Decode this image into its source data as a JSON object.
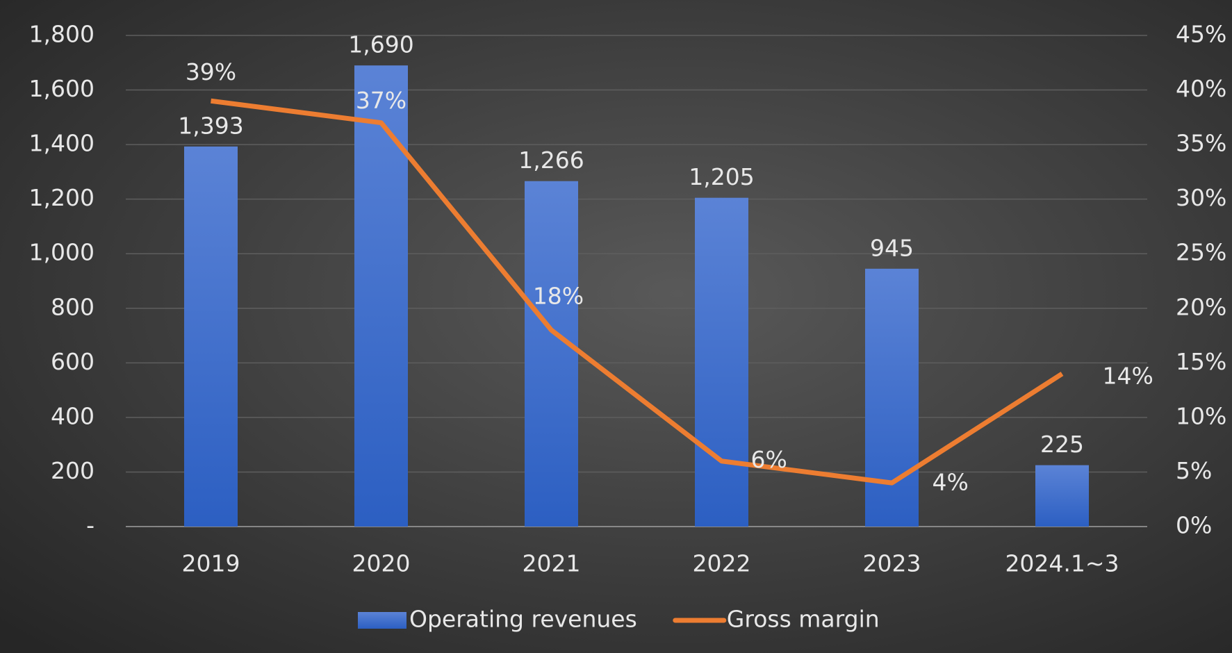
{
  "chart_data": {
    "type": "bar",
    "categories": [
      "2019",
      "2020",
      "2021",
      "2022",
      "2023",
      "2024.1~3"
    ],
    "series": [
      {
        "name": "Operating revenues",
        "type": "bar",
        "color": "#4a78d4",
        "values": [
          1393,
          1690,
          1266,
          1205,
          945,
          225
        ],
        "value_labels": [
          "1,393",
          "1,690",
          "1,266",
          "1,205",
          "945",
          "225"
        ]
      },
      {
        "name": "Gross margin",
        "type": "line",
        "axis": "y2",
        "color": "#ed7d31",
        "values": [
          39,
          37,
          18,
          6,
          4,
          14
        ],
        "value_labels": [
          "39%",
          "37%",
          "18%",
          "6%",
          "4%",
          "14%"
        ]
      }
    ],
    "ylim": [
      0,
      1800
    ],
    "yticks": [
      {
        "value": 0,
        "label": "-"
      },
      200,
      400,
      600,
      800,
      {
        "value": 1000,
        "label": "1,000"
      },
      {
        "value": 1200,
        "label": "1,200"
      },
      {
        "value": 1400,
        "label": "1,400"
      },
      {
        "value": 1600,
        "label": "1,600"
      },
      {
        "value": 1800,
        "label": "1,800"
      }
    ],
    "y2lim": [
      0,
      45
    ],
    "y2ticks": [
      {
        "value": 0,
        "label": "0%"
      },
      {
        "value": 5,
        "label": "5%"
      },
      {
        "value": 10,
        "label": "10%"
      },
      {
        "value": 15,
        "label": "15%"
      },
      {
        "value": 20,
        "label": "20%"
      },
      {
        "value": 25,
        "label": "25%"
      },
      {
        "value": 30,
        "label": "30%"
      },
      {
        "value": 35,
        "label": "35%"
      },
      {
        "value": 40,
        "label": "40%"
      },
      {
        "value": 45,
        "label": "45%"
      }
    ],
    "grid": true,
    "legend": "bottom"
  }
}
